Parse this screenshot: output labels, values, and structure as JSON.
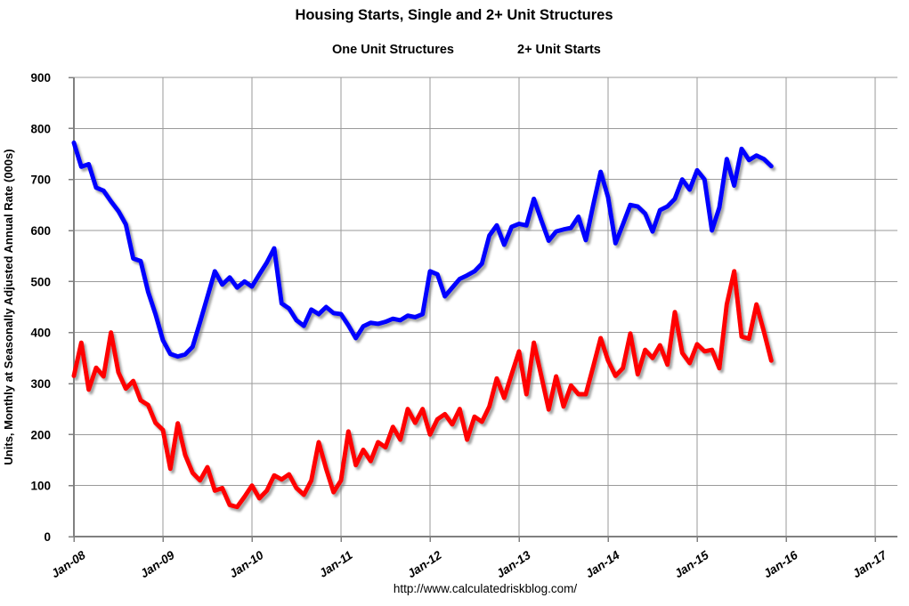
{
  "header": {
    "title": "Housing Starts, Single and 2+ Unit Structures"
  },
  "footer": {
    "url": "http://www.calculatedriskblog.com/"
  },
  "legend": {
    "position": "top-center"
  },
  "chart_data": {
    "type": "line",
    "title": "Housing Starts, Single and 2+ Unit Structures",
    "xlabel": "",
    "ylabel": "Units, Monthly at Seasonally Adjusted Annual Rate (000s)",
    "ylim": [
      0,
      900
    ],
    "y_ticks": [
      0,
      100,
      200,
      300,
      400,
      500,
      600,
      700,
      800,
      900
    ],
    "x_ticks": [
      "Jan-08",
      "Jan-09",
      "Jan-10",
      "Jan-11",
      "Jan-12",
      "Jan-13",
      "Jan-14",
      "Jan-15",
      "Jan-16",
      "Jan-17"
    ],
    "frequency": "monthly",
    "x_start": "Jan-08",
    "x_end": "Nov-15",
    "grid": true,
    "legend_position": "top",
    "background": "#ffffff",
    "series": [
      {
        "name": "One Unit Structures",
        "color": "#0000ff",
        "values": [
          772,
          725,
          730,
          684,
          678,
          657,
          638,
          612,
          545,
          540,
          480,
          436,
          385,
          358,
          353,
          357,
          372,
          420,
          470,
          520,
          494,
          508,
          488,
          500,
          490,
          514,
          537,
          565,
          457,
          447,
          424,
          413,
          445,
          436,
          450,
          438,
          436,
          414,
          389,
          412,
          419,
          417,
          421,
          427,
          424,
          433,
          430,
          436,
          520,
          514,
          471,
          488,
          505,
          512,
          520,
          535,
          590,
          610,
          572,
          607,
          613,
          610,
          662,
          620,
          580,
          598,
          602,
          605,
          627,
          581,
          650,
          715,
          665,
          575,
          612,
          650,
          647,
          633,
          598,
          640,
          647,
          662,
          700,
          680,
          718,
          700,
          600,
          645,
          740,
          688,
          760,
          738,
          747,
          740,
          726
        ]
      },
      {
        "name": "2+ Unit Starts",
        "color": "#ff0000",
        "values": [
          315,
          380,
          288,
          331,
          314,
          400,
          322,
          290,
          305,
          267,
          258,
          223,
          209,
          133,
          222,
          160,
          125,
          110,
          136,
          90,
          95,
          62,
          58,
          78,
          100,
          75,
          90,
          120,
          112,
          122,
          95,
          82,
          110,
          185,
          133,
          87,
          110,
          206,
          140,
          170,
          148,
          185,
          175,
          215,
          190,
          250,
          223,
          250,
          200,
          230,
          240,
          220,
          250,
          190,
          235,
          225,
          255,
          310,
          272,
          318,
          363,
          279,
          380,
          315,
          249,
          314,
          255,
          296,
          279,
          279,
          333,
          389,
          345,
          315,
          330,
          398,
          318,
          366,
          350,
          375,
          337,
          440,
          360,
          340,
          377,
          363,
          366,
          330,
          455,
          520,
          392,
          388,
          455,
          402,
          345
        ]
      }
    ]
  }
}
